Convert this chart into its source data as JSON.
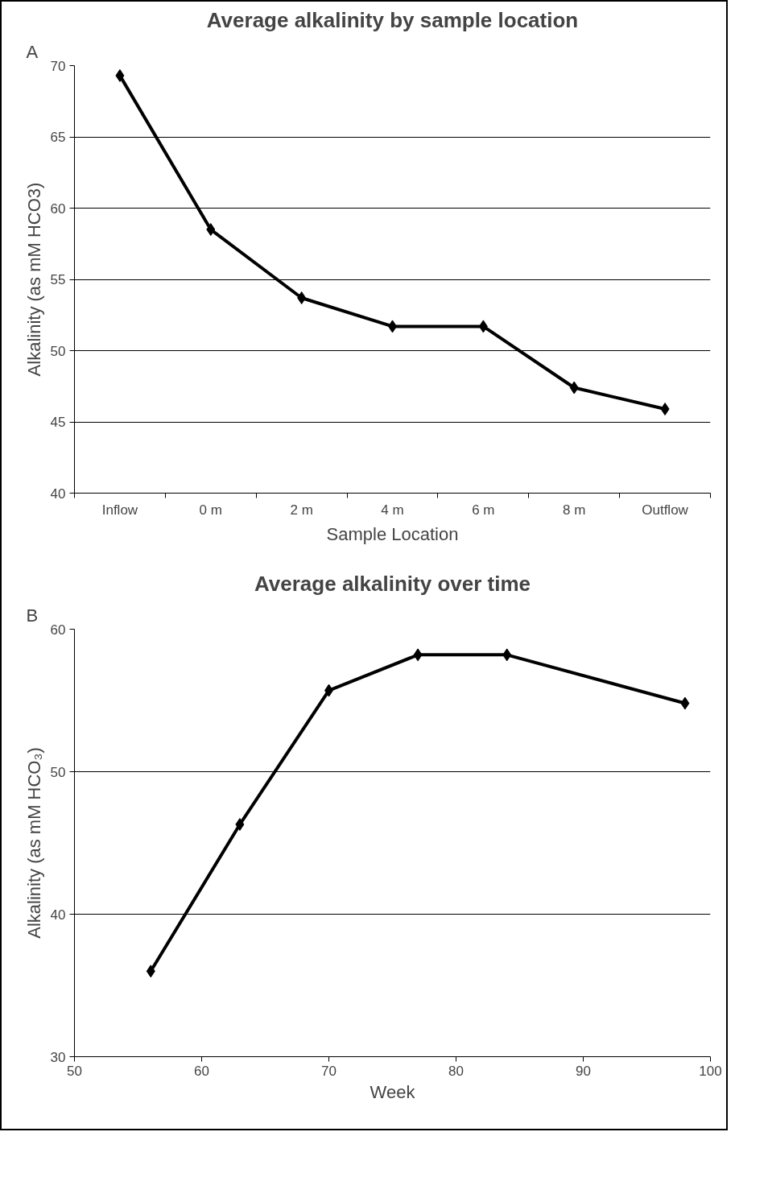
{
  "chart_data": [
    {
      "type": "line",
      "title": "Average alkalinity by sample location",
      "xlabel": "Sample Location",
      "ylabel": "Alkalinity (as mM HCO3)",
      "annotations": [
        "A"
      ],
      "categories": [
        "Inflow",
        "0 m",
        "2 m",
        "4 m",
        "6 m",
        "8 m",
        "Outflow"
      ],
      "series": [
        {
          "color": "#000000",
          "values": [
            69.3,
            58.5,
            53.7,
            51.7,
            51.7,
            47.4,
            45.9
          ]
        }
      ],
      "ylim": [
        40,
        70
      ],
      "yticks": [
        40,
        45,
        50,
        55,
        60,
        65,
        70
      ],
      "grid": "y",
      "marker": "diamond",
      "line_style": "solid"
    },
    {
      "type": "line",
      "title": "Average alkalinity over time",
      "xlabel": "Week",
      "ylabel": "Alkalinity (as mM HCO₃)",
      "annotations": [
        "B"
      ],
      "x": [
        56,
        63,
        70,
        77,
        84,
        98
      ],
      "series": [
        {
          "color": "#000000",
          "values": [
            36.0,
            46.3,
            55.7,
            58.2,
            58.2,
            54.8
          ]
        }
      ],
      "xlim": [
        50,
        100
      ],
      "xticks": [
        50,
        60,
        70,
        80,
        90,
        100
      ],
      "ylim": [
        30,
        60
      ],
      "yticks": [
        30,
        40,
        50,
        60
      ],
      "grid": "y",
      "marker": "diamond",
      "line_style": "solid"
    }
  ]
}
